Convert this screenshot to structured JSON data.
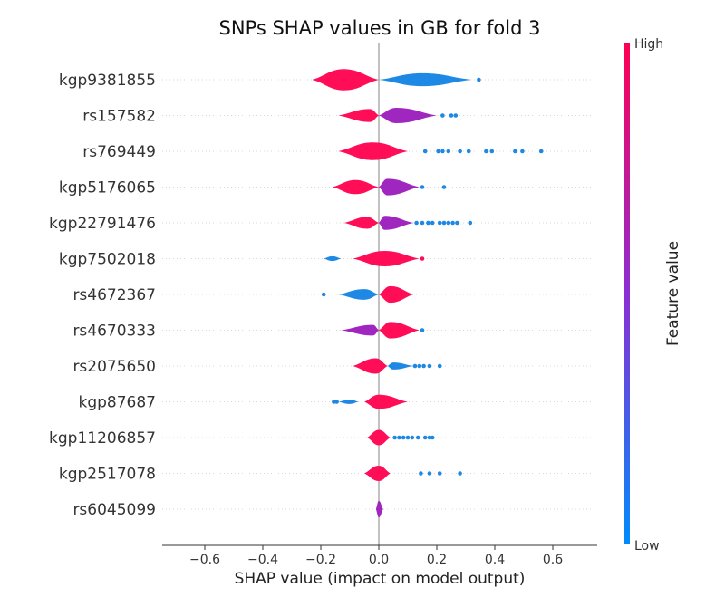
{
  "chart_data": {
    "type": "violin",
    "title": "SNPs SHAP values in GB for fold 3",
    "xlabel": "SHAP value (impact on model output)",
    "xlim": [
      -0.75,
      0.75
    ],
    "xticks": [
      "−0.6",
      "−0.4",
      "−0.2",
      "0.0",
      "0.2",
      "0.4",
      "0.6"
    ],
    "xtick_values": [
      -0.6,
      -0.4,
      -0.2,
      0.0,
      0.2,
      0.4,
      0.6
    ],
    "colorbar": {
      "label": "Feature value",
      "high": "High",
      "low": "Low"
    },
    "colors": {
      "high": "#ff0d57",
      "mid": "#a026c0",
      "low": "#1e88e5"
    },
    "features": [
      {
        "name": "kgp9381855",
        "segments": [
          {
            "x": [
              -0.23,
              0.0
            ],
            "width": 0.9,
            "color": "high",
            "peak": -0.12
          },
          {
            "x": [
              0.0,
              0.32
            ],
            "width": 0.55,
            "color": "low",
            "peak": 0.15
          }
        ],
        "outliers": [
          {
            "x": 0.345,
            "c": "low"
          }
        ]
      },
      {
        "name": "rs157582",
        "segments": [
          {
            "x": [
              -0.14,
              0.0
            ],
            "width": 0.55,
            "color": "high",
            "peak": -0.03
          },
          {
            "x": [
              0.0,
              0.2
            ],
            "width": 0.65,
            "color": "mid",
            "peak": 0.06
          }
        ],
        "outliers": [
          {
            "x": 0.22,
            "c": "low"
          },
          {
            "x": 0.25,
            "c": "low"
          },
          {
            "x": 0.265,
            "c": "low"
          }
        ]
      },
      {
        "name": "rs769449",
        "segments": [
          {
            "x": [
              -0.14,
              0.1
            ],
            "width": 0.75,
            "color": "high",
            "peak": -0.02
          }
        ],
        "outliers": [
          {
            "x": 0.16,
            "c": "low"
          },
          {
            "x": 0.205,
            "c": "low"
          },
          {
            "x": 0.22,
            "c": "low"
          },
          {
            "x": 0.24,
            "c": "low"
          },
          {
            "x": 0.28,
            "c": "low"
          },
          {
            "x": 0.31,
            "c": "low"
          },
          {
            "x": 0.37,
            "c": "low"
          },
          {
            "x": 0.39,
            "c": "low"
          },
          {
            "x": 0.47,
            "c": "low"
          },
          {
            "x": 0.495,
            "c": "low"
          },
          {
            "x": 0.56,
            "c": "low"
          }
        ]
      },
      {
        "name": "kgp5176065",
        "segments": [
          {
            "x": [
              -0.16,
              0.0
            ],
            "width": 0.6,
            "color": "high",
            "peak": -0.08
          },
          {
            "x": [
              0.0,
              0.14
            ],
            "width": 0.7,
            "color": "mid",
            "peak": 0.03
          }
        ],
        "outliers": [
          {
            "x": 0.15,
            "c": "low"
          },
          {
            "x": 0.225,
            "c": "low"
          }
        ]
      },
      {
        "name": "kgp22791476",
        "segments": [
          {
            "x": [
              -0.12,
              0.0
            ],
            "width": 0.5,
            "color": "high",
            "peak": -0.04
          },
          {
            "x": [
              0.0,
              0.12
            ],
            "width": 0.6,
            "color": "mid",
            "peak": 0.02
          }
        ],
        "outliers": [
          {
            "x": 0.13,
            "c": "low"
          },
          {
            "x": 0.15,
            "c": "low"
          },
          {
            "x": 0.17,
            "c": "low"
          },
          {
            "x": 0.185,
            "c": "low"
          },
          {
            "x": 0.21,
            "c": "low"
          },
          {
            "x": 0.225,
            "c": "low"
          },
          {
            "x": 0.24,
            "c": "low"
          },
          {
            "x": 0.255,
            "c": "low"
          },
          {
            "x": 0.27,
            "c": "low"
          },
          {
            "x": 0.315,
            "c": "low"
          }
        ]
      },
      {
        "name": "kgp7502018",
        "segments": [
          {
            "x": [
              -0.19,
              -0.13
            ],
            "width": 0.2,
            "color": "low",
            "peak": -0.16
          },
          {
            "x": [
              -0.09,
              0.14
            ],
            "width": 0.65,
            "color": "high",
            "peak": 0.02
          }
        ],
        "outliers": [
          {
            "x": 0.15,
            "c": "high"
          }
        ]
      },
      {
        "name": "rs4672367",
        "segments": [
          {
            "x": [
              -0.14,
              0.0
            ],
            "width": 0.45,
            "color": "low",
            "peak": -0.05
          },
          {
            "x": [
              0.0,
              0.12
            ],
            "width": 0.7,
            "color": "high",
            "peak": 0.04
          }
        ],
        "outliers": [
          {
            "x": -0.19,
            "c": "low"
          }
        ]
      },
      {
        "name": "rs4670333",
        "segments": [
          {
            "x": [
              -0.13,
              0.0
            ],
            "width": 0.45,
            "color": "mid",
            "peak": -0.02
          },
          {
            "x": [
              0.0,
              0.14
            ],
            "width": 0.7,
            "color": "high",
            "peak": 0.04
          }
        ],
        "outliers": [
          {
            "x": 0.15,
            "c": "low"
          }
        ]
      },
      {
        "name": "rs2075650",
        "segments": [
          {
            "x": [
              -0.09,
              0.03
            ],
            "width": 0.65,
            "color": "high",
            "peak": -0.01
          },
          {
            "x": [
              0.03,
              0.12
            ],
            "width": 0.3,
            "color": "low",
            "peak": 0.05
          }
        ],
        "outliers": [
          {
            "x": 0.125,
            "c": "low"
          },
          {
            "x": 0.14,
            "c": "low"
          },
          {
            "x": 0.155,
            "c": "low"
          },
          {
            "x": 0.175,
            "c": "low"
          },
          {
            "x": 0.21,
            "c": "low"
          }
        ]
      },
      {
        "name": "kgp87687",
        "segments": [
          {
            "x": [
              -0.14,
              -0.07
            ],
            "width": 0.18,
            "color": "low",
            "peak": -0.1
          },
          {
            "x": [
              -0.05,
              0.1
            ],
            "width": 0.6,
            "color": "high",
            "peak": 0.0
          }
        ],
        "outliers": [
          {
            "x": -0.145,
            "c": "low"
          },
          {
            "x": -0.155,
            "c": "low"
          }
        ]
      },
      {
        "name": "kgp11206857",
        "segments": [
          {
            "x": [
              -0.04,
              0.04
            ],
            "width": 0.65,
            "color": "high",
            "peak": 0.0
          }
        ],
        "outliers": [
          {
            "x": 0.055,
            "c": "low"
          },
          {
            "x": 0.07,
            "c": "low"
          },
          {
            "x": 0.085,
            "c": "low"
          },
          {
            "x": 0.1,
            "c": "low"
          },
          {
            "x": 0.115,
            "c": "low"
          },
          {
            "x": 0.135,
            "c": "low"
          },
          {
            "x": 0.16,
            "c": "low"
          },
          {
            "x": 0.175,
            "c": "low"
          },
          {
            "x": 0.185,
            "c": "low"
          }
        ]
      },
      {
        "name": "kgp2517078",
        "segments": [
          {
            "x": [
              -0.05,
              0.04
            ],
            "width": 0.65,
            "color": "high",
            "peak": 0.0
          }
        ],
        "outliers": [
          {
            "x": 0.145,
            "c": "low"
          },
          {
            "x": 0.175,
            "c": "low"
          },
          {
            "x": 0.21,
            "c": "low"
          },
          {
            "x": 0.28,
            "c": "low"
          }
        ]
      },
      {
        "name": "rs6045099",
        "segments": [
          {
            "x": [
              -0.01,
              0.015
            ],
            "width": 0.7,
            "color": "mid",
            "peak": 0.0
          }
        ],
        "outliers": []
      }
    ]
  }
}
